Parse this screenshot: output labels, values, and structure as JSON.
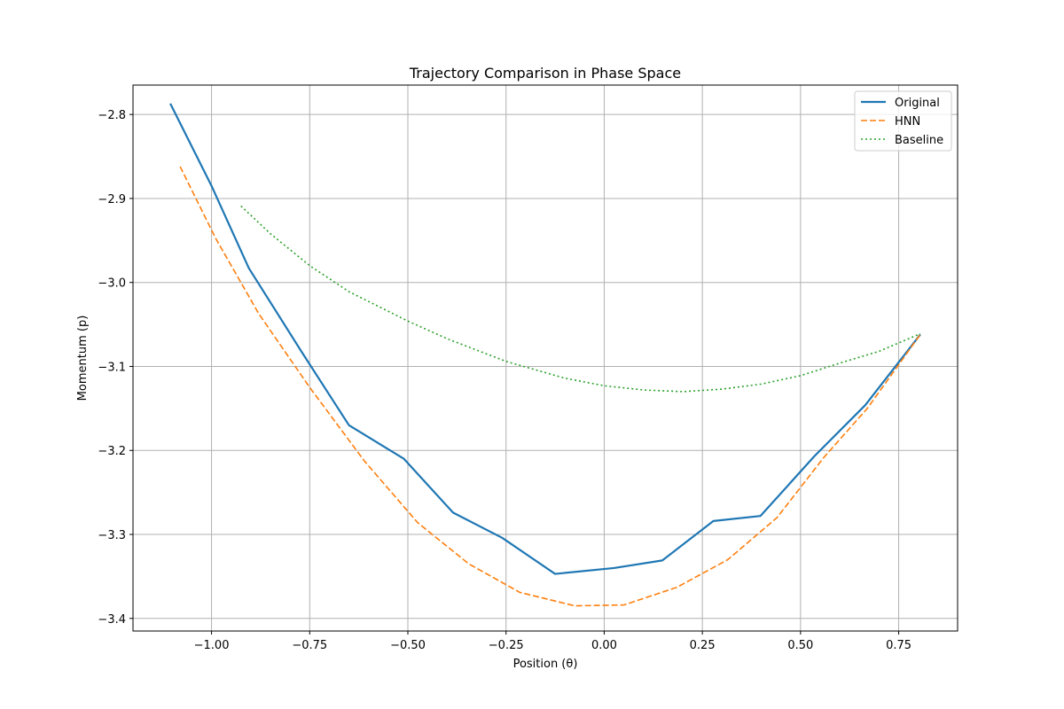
{
  "chart_data": {
    "type": "line",
    "title": "Trajectory Comparison in Phase Space",
    "xlabel": "Position (θ)",
    "ylabel": "Momentum (p)",
    "xlim": [
      -1.2,
      0.9
    ],
    "ylim": [
      -3.415,
      -2.765
    ],
    "xticks": [
      -1.0,
      -0.75,
      -0.5,
      -0.25,
      0.0,
      0.25,
      0.5,
      0.75
    ],
    "xtick_labels": [
      "−1.00",
      "−0.75",
      "−0.50",
      "−0.25",
      "0.00",
      "0.25",
      "0.50",
      "0.75"
    ],
    "yticks": [
      -2.8,
      -2.9,
      -3.0,
      -3.1,
      -3.2,
      -3.3,
      -3.4
    ],
    "ytick_labels": [
      "−2.8",
      "−2.9",
      "−3.0",
      "−3.1",
      "−3.2",
      "−3.3",
      "−3.4"
    ],
    "grid": true,
    "legend_position": "top-right",
    "series": [
      {
        "name": "Original",
        "color": "#1f77b4",
        "style": "solid",
        "points": [
          [
            -1.105,
            -2.787
          ],
          [
            -1.0,
            -2.885
          ],
          [
            -0.905,
            -2.983
          ],
          [
            -0.77,
            -3.083
          ],
          [
            -0.65,
            -3.17
          ],
          [
            -0.51,
            -3.21
          ],
          [
            -0.385,
            -3.274
          ],
          [
            -0.26,
            -3.304
          ],
          [
            -0.125,
            -3.347
          ],
          [
            0.025,
            -3.34
          ],
          [
            0.148,
            -3.331
          ],
          [
            0.278,
            -3.284
          ],
          [
            0.398,
            -3.278
          ],
          [
            0.535,
            -3.207
          ],
          [
            0.665,
            -3.146
          ],
          [
            0.805,
            -3.062
          ]
        ]
      },
      {
        "name": "HNN",
        "color": "#ff7f0e",
        "style": "dashed",
        "points": [
          [
            -1.08,
            -2.862
          ],
          [
            -0.99,
            -2.947
          ],
          [
            -0.88,
            -3.037
          ],
          [
            -0.75,
            -3.125
          ],
          [
            -0.61,
            -3.213
          ],
          [
            -0.475,
            -3.286
          ],
          [
            -0.345,
            -3.335
          ],
          [
            -0.215,
            -3.369
          ],
          [
            -0.075,
            -3.385
          ],
          [
            0.05,
            -3.384
          ],
          [
            0.185,
            -3.363
          ],
          [
            0.315,
            -3.33
          ],
          [
            0.44,
            -3.28
          ],
          [
            0.56,
            -3.208
          ],
          [
            0.67,
            -3.15
          ],
          [
            0.805,
            -3.062
          ]
        ]
      },
      {
        "name": "Baseline",
        "color": "#2ca02c",
        "style": "dotted",
        "points": [
          [
            -0.925,
            -2.909
          ],
          [
            -0.85,
            -2.942
          ],
          [
            -0.75,
            -2.98
          ],
          [
            -0.65,
            -3.011
          ],
          [
            -0.5,
            -3.046
          ],
          [
            -0.4,
            -3.067
          ],
          [
            -0.25,
            -3.094
          ],
          [
            -0.1,
            -3.114
          ],
          [
            0.0,
            -3.123
          ],
          [
            0.1,
            -3.128
          ],
          [
            0.2,
            -3.13
          ],
          [
            0.3,
            -3.127
          ],
          [
            0.4,
            -3.121
          ],
          [
            0.5,
            -3.111
          ],
          [
            0.6,
            -3.096
          ],
          [
            0.7,
            -3.082
          ],
          [
            0.805,
            -3.061
          ]
        ]
      }
    ]
  }
}
